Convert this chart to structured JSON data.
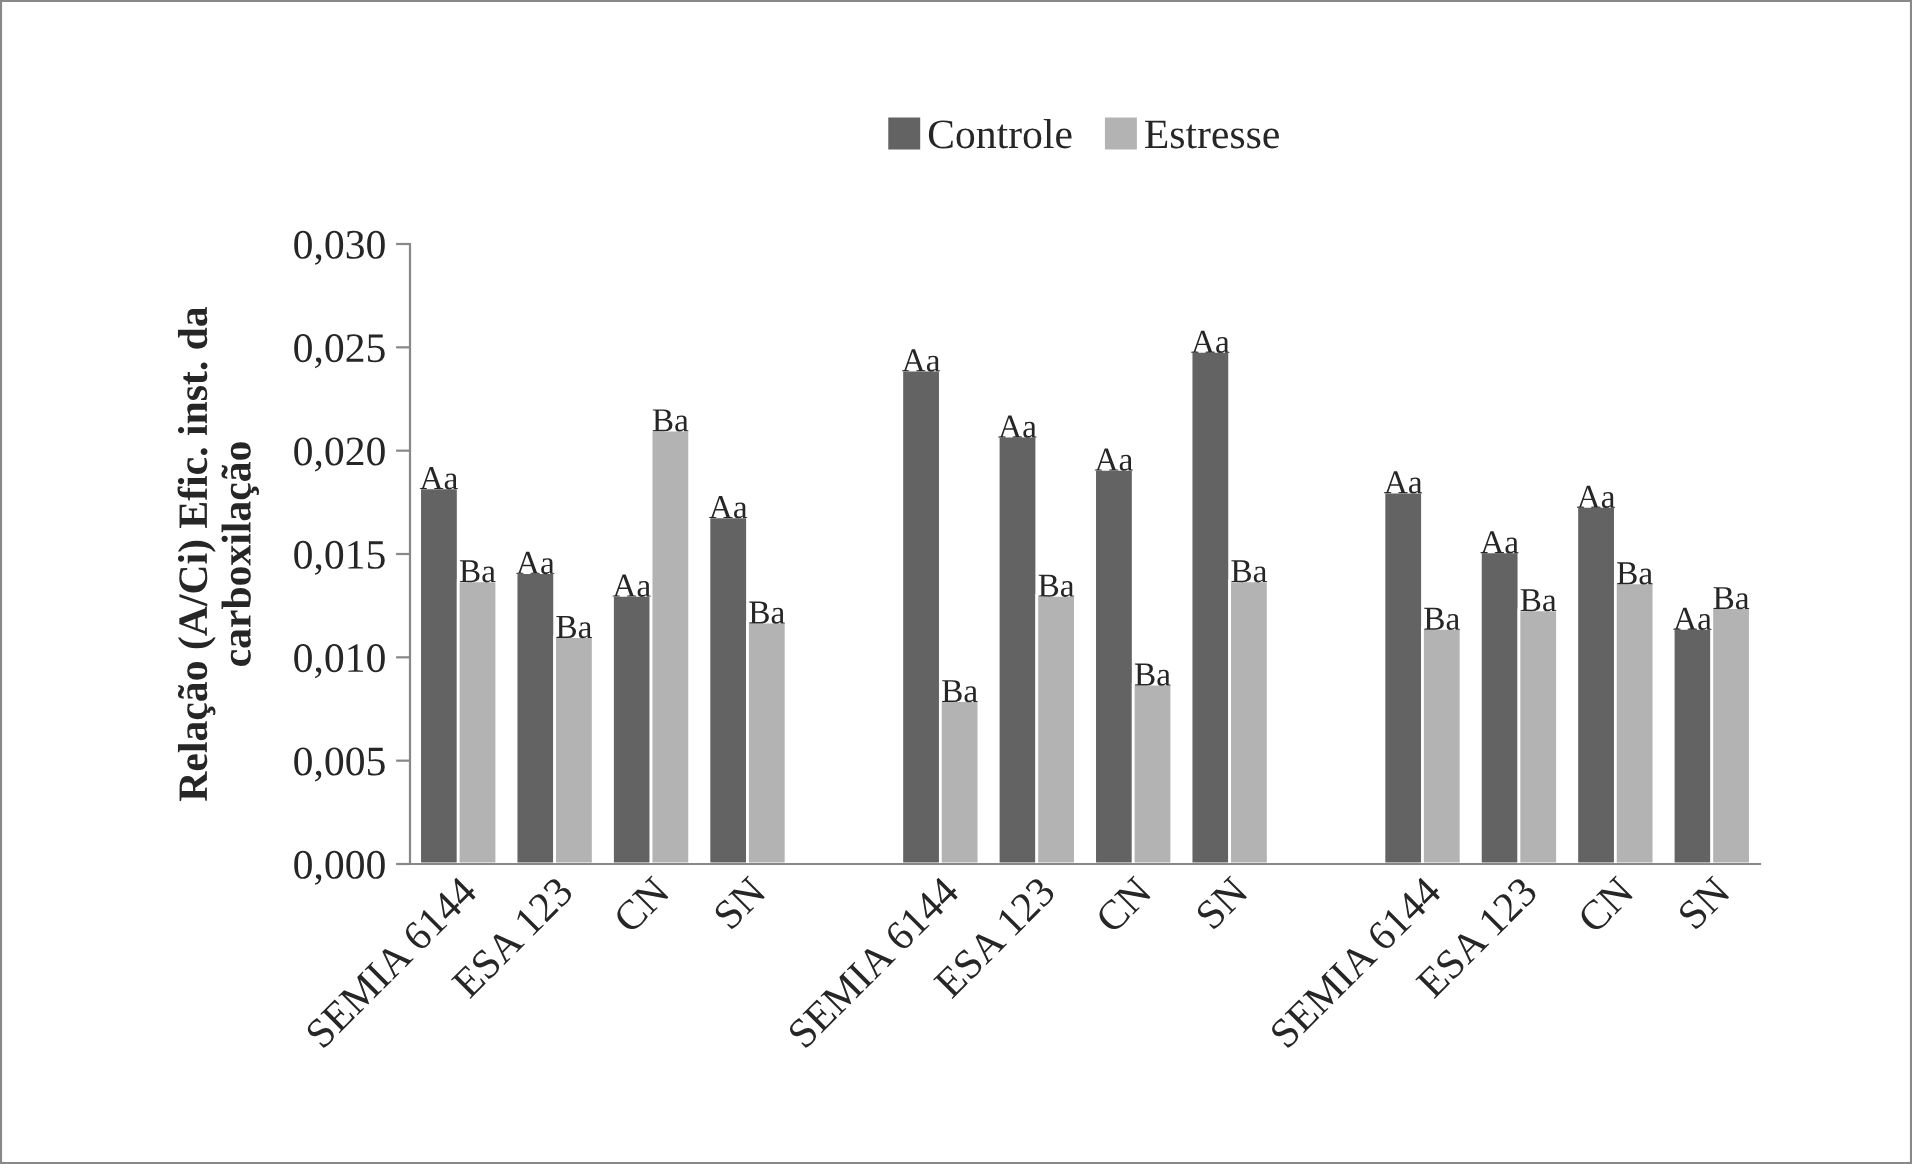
{
  "chart_data": {
    "type": "bar",
    "ylabel": "Relação (A/Ci) Efic. inst. da\ncarboxilação",
    "categories": [
      "SEMIA 6144",
      "ESA 123",
      "CN",
      "SN",
      null,
      "SEMIA 6144",
      "ESA 123",
      "CN",
      "SN",
      null,
      "SEMIA 6144",
      "ESA 123",
      "CN",
      "SN"
    ],
    "series": [
      {
        "name": "Controle",
        "color": "#636363",
        "values": [
          0.0182,
          0.0141,
          0.013,
          0.0168,
          null,
          0.0239,
          0.0207,
          0.0191,
          0.0248,
          null,
          0.018,
          0.0151,
          0.0173,
          0.0114
        ],
        "value_labels": [
          "Aa",
          "Aa",
          "Aa",
          "Aa",
          null,
          "Aa",
          "Aa",
          "Aa",
          "Aa",
          null,
          "Aa",
          "Aa",
          "Aa",
          "Aa"
        ]
      },
      {
        "name": "Estresse",
        "color": "#b3b3b3",
        "values": [
          0.0137,
          0.011,
          0.021,
          0.0117,
          null,
          0.0079,
          0.013,
          0.0087,
          0.0137,
          null,
          0.0114,
          0.0123,
          0.0136,
          0.0124
        ],
        "value_labels": [
          "Ba",
          "Ba",
          "Ba",
          "Ba",
          null,
          "Ba",
          "Ba",
          "Ba",
          "Ba",
          null,
          "Ba",
          "Ba",
          "Ba",
          "Ba"
        ]
      }
    ],
    "ylim": [
      0,
      0.03
    ],
    "yticks": [
      {
        "value": 0,
        "label": "0,000"
      },
      {
        "value": 0.005,
        "label": "0,005"
      },
      {
        "value": 0.01,
        "label": "0,010"
      },
      {
        "value": 0.015,
        "label": "0,015"
      },
      {
        "value": 0.02,
        "label": "0,020"
      },
      {
        "value": 0.025,
        "label": "0,025"
      },
      {
        "value": 0.03,
        "label": "0,030"
      }
    ],
    "grid": false,
    "legend": "top"
  }
}
